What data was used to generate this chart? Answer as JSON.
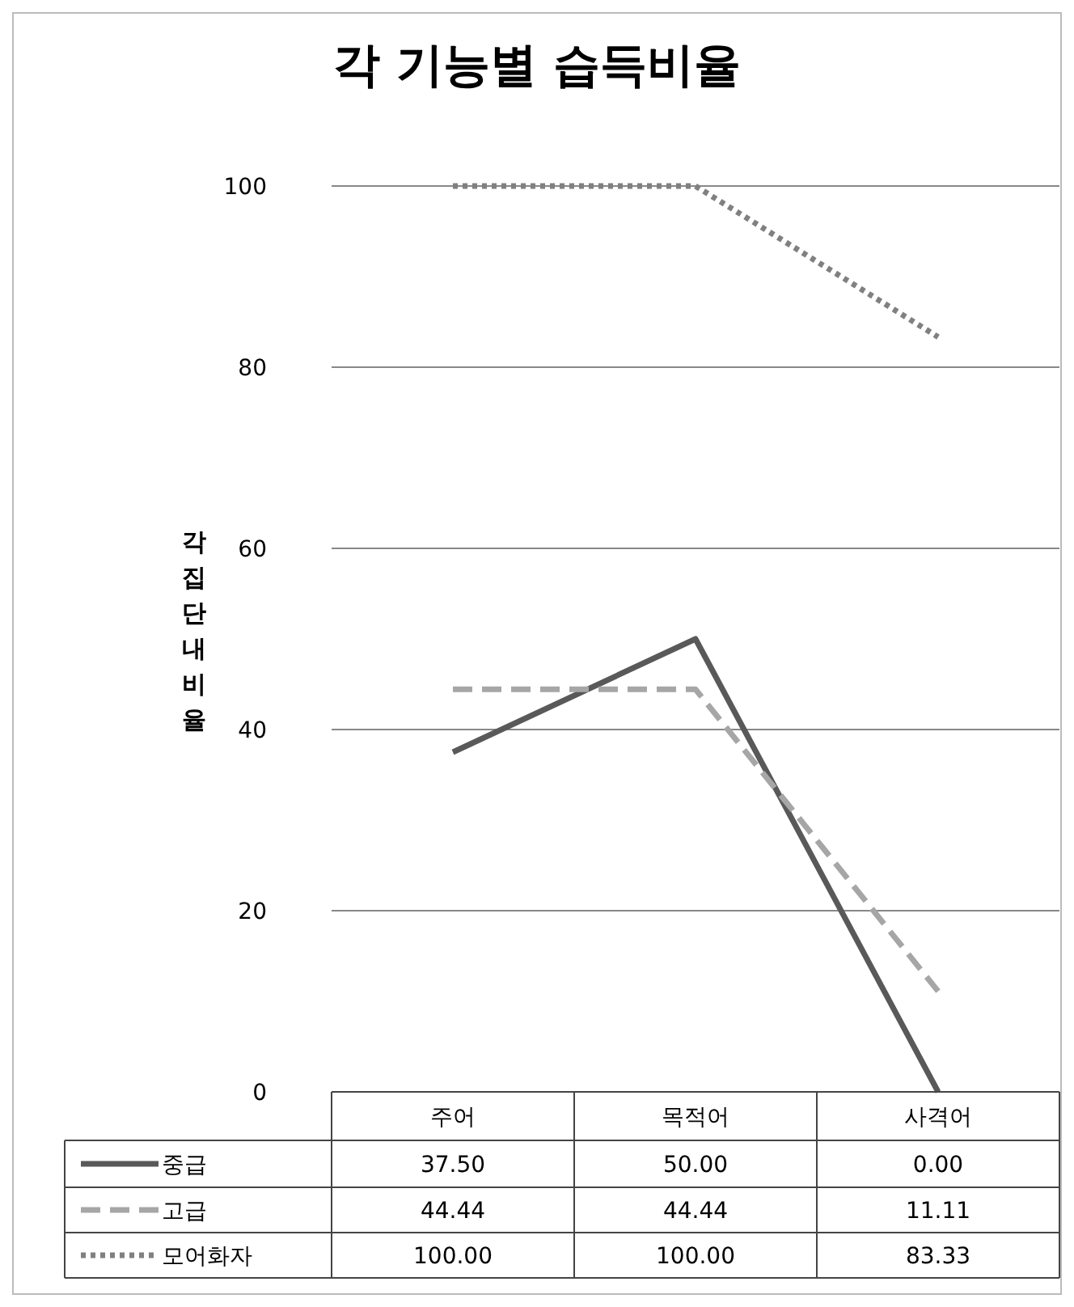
{
  "chart_data": {
    "type": "line",
    "title": "각 기능별 습득비율",
    "ylabel": "각집단내비율",
    "categories": [
      "주어",
      "목적어",
      "사격어"
    ],
    "series": [
      {
        "name": "중급",
        "color": "#595959",
        "line_style": "solid",
        "values": [
          37.5,
          50,
          0
        ],
        "value_labels": [
          "37.50",
          "50.00",
          "0.00"
        ]
      },
      {
        "name": "고급",
        "color": "#a6a6a6",
        "line_style": "dashed",
        "values": [
          44.44,
          44.44,
          11.11
        ],
        "value_labels": [
          "44.44",
          "44.44",
          "11.11"
        ]
      },
      {
        "name": "모어화자",
        "color": "#808080",
        "line_style": "dotted",
        "values": [
          100,
          100,
          83.33
        ],
        "value_labels": [
          "100.00",
          "100.00",
          "83.33"
        ]
      }
    ],
    "ylim": [
      0,
      100
    ],
    "yticks": [
      0,
      20,
      40,
      60,
      80,
      100
    ],
    "grid": "y",
    "legend": "bottom"
  }
}
